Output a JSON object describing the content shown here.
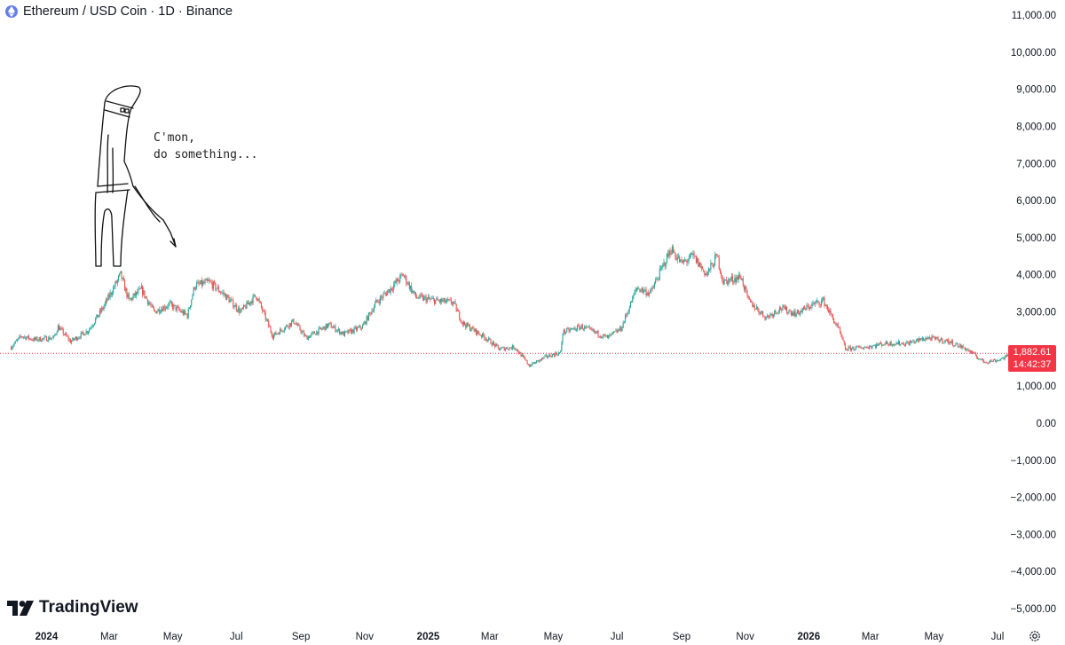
{
  "header": {
    "symbol": "Ethereum / USD Coin · 1D · Binance",
    "icon": "ethereum-icon"
  },
  "annotation": {
    "speech": "C'mon,\ndo something...",
    "drawing": "stick-figure-prodding-with-stick"
  },
  "brand": {
    "name": "TradingView",
    "icon": "tradingview-logo-icon"
  },
  "price_label": {
    "price": "1,882.61",
    "countdown": "14:42:37",
    "color": "#f23645"
  },
  "settings": {
    "icon": "settings-gear-icon"
  },
  "colors": {
    "up": "#26a69a",
    "down": "#ef5350",
    "price_line": "#f23645"
  },
  "chart_data": {
    "type": "candlestick",
    "title": "",
    "xlabel": "",
    "ylabel": "",
    "ylim": [
      -5000,
      11000
    ],
    "y_ticks": [
      11000,
      10000,
      9000,
      8000,
      7000,
      6000,
      5000,
      4000,
      3000,
      2000,
      1000,
      0,
      -1000,
      -2000,
      -3000,
      -4000,
      -5000
    ],
    "y_tick_labels": [
      "11,000.00",
      "10,000.00",
      "9,000.00",
      "8,000.00",
      "7,000.00",
      "6,000.00",
      "5,000.00",
      "4,000.00",
      "3,000.00",
      "2,000.00",
      "1,000.00",
      "0.00",
      "−1,000.00",
      "−2,000.00",
      "−3,000.00",
      "−4,000.00",
      "−5,000.00"
    ],
    "x_range": [
      "2023-11-28",
      "2026-07-24"
    ],
    "x_ticks": [
      {
        "label": "2024",
        "date": "2024-01-01",
        "bold": true
      },
      {
        "label": "Mar",
        "date": "2024-03-01",
        "bold": false
      },
      {
        "label": "May",
        "date": "2024-05-01",
        "bold": false
      },
      {
        "label": "Jul",
        "date": "2024-07-01",
        "bold": false
      },
      {
        "label": "Sep",
        "date": "2024-09-01",
        "bold": false
      },
      {
        "label": "Nov",
        "date": "2024-11-01",
        "bold": false
      },
      {
        "label": "2025",
        "date": "2025-01-01",
        "bold": true
      },
      {
        "label": "Mar",
        "date": "2025-03-01",
        "bold": false
      },
      {
        "label": "May",
        "date": "2025-05-01",
        "bold": false
      },
      {
        "label": "Jul",
        "date": "2025-07-01",
        "bold": false
      },
      {
        "label": "Sep",
        "date": "2025-09-01",
        "bold": false
      },
      {
        "label": "Nov",
        "date": "2025-11-01",
        "bold": false
      },
      {
        "label": "2026",
        "date": "2026-01-01",
        "bold": true
      },
      {
        "label": "Mar",
        "date": "2026-03-01",
        "bold": false
      },
      {
        "label": "May",
        "date": "2026-05-01",
        "bold": false
      },
      {
        "label": "Jul",
        "date": "2026-07-01",
        "bold": false
      }
    ],
    "last_price": 1882.61,
    "close_path": [
      [
        "2023-11-28",
        2050
      ],
      [
        "2023-12-08",
        2350
      ],
      [
        "2023-12-20",
        2250
      ],
      [
        "2024-01-08",
        2300
      ],
      [
        "2024-01-12",
        2600
      ],
      [
        "2024-01-24",
        2200
      ],
      [
        "2024-02-10",
        2500
      ],
      [
        "2024-02-24",
        3100
      ],
      [
        "2024-03-12",
        4000
      ],
      [
        "2024-03-20",
        3300
      ],
      [
        "2024-04-01",
        3600
      ],
      [
        "2024-04-13",
        3000
      ],
      [
        "2024-04-28",
        3200
      ],
      [
        "2024-05-15",
        2900
      ],
      [
        "2024-05-22",
        3700
      ],
      [
        "2024-06-05",
        3800
      ],
      [
        "2024-06-20",
        3450
      ],
      [
        "2024-07-05",
        3000
      ],
      [
        "2024-07-20",
        3450
      ],
      [
        "2024-08-05",
        2350
      ],
      [
        "2024-08-25",
        2750
      ],
      [
        "2024-09-06",
        2300
      ],
      [
        "2024-09-28",
        2650
      ],
      [
        "2024-10-12",
        2400
      ],
      [
        "2024-10-30",
        2600
      ],
      [
        "2024-11-12",
        3250
      ],
      [
        "2024-11-25",
        3600
      ],
      [
        "2024-12-08",
        4000
      ],
      [
        "2024-12-20",
        3400
      ],
      [
        "2025-01-08",
        3300
      ],
      [
        "2025-01-25",
        3250
      ],
      [
        "2025-02-03",
        2700
      ],
      [
        "2025-02-25",
        2300
      ],
      [
        "2025-03-10",
        2000
      ],
      [
        "2025-03-25",
        2050
      ],
      [
        "2025-04-08",
        1550
      ],
      [
        "2025-04-25",
        1800
      ],
      [
        "2025-05-08",
        1900
      ],
      [
        "2025-05-10",
        2450
      ],
      [
        "2025-05-28",
        2600
      ],
      [
        "2025-06-22",
        2300
      ],
      [
        "2025-07-05",
        2550
      ],
      [
        "2025-07-20",
        3650
      ],
      [
        "2025-08-02",
        3500
      ],
      [
        "2025-08-22",
        4700
      ],
      [
        "2025-09-01",
        4300
      ],
      [
        "2025-09-12",
        4500
      ],
      [
        "2025-09-25",
        4000
      ],
      [
        "2025-10-05",
        4500
      ],
      [
        "2025-10-11",
        3800
      ],
      [
        "2025-10-28",
        3950
      ],
      [
        "2025-11-04",
        3300
      ],
      [
        "2025-11-21",
        2850
      ],
      [
        "2025-12-05",
        3100
      ],
      [
        "2025-12-20",
        2950
      ],
      [
        "2026-01-05",
        3200
      ],
      [
        "2026-01-15",
        3300
      ],
      [
        "2026-01-30",
        2500
      ],
      [
        "2026-02-05",
        2000
      ],
      [
        "2026-02-25",
        2050
      ],
      [
        "2026-03-15",
        2150
      ],
      [
        "2026-04-05",
        2150
      ],
      [
        "2026-04-25",
        2300
      ],
      [
        "2026-05-15",
        2200
      ],
      [
        "2026-06-01",
        2000
      ],
      [
        "2026-06-18",
        1650
      ],
      [
        "2026-07-01",
        1700
      ],
      [
        "2026-07-18",
        1880
      ]
    ]
  }
}
